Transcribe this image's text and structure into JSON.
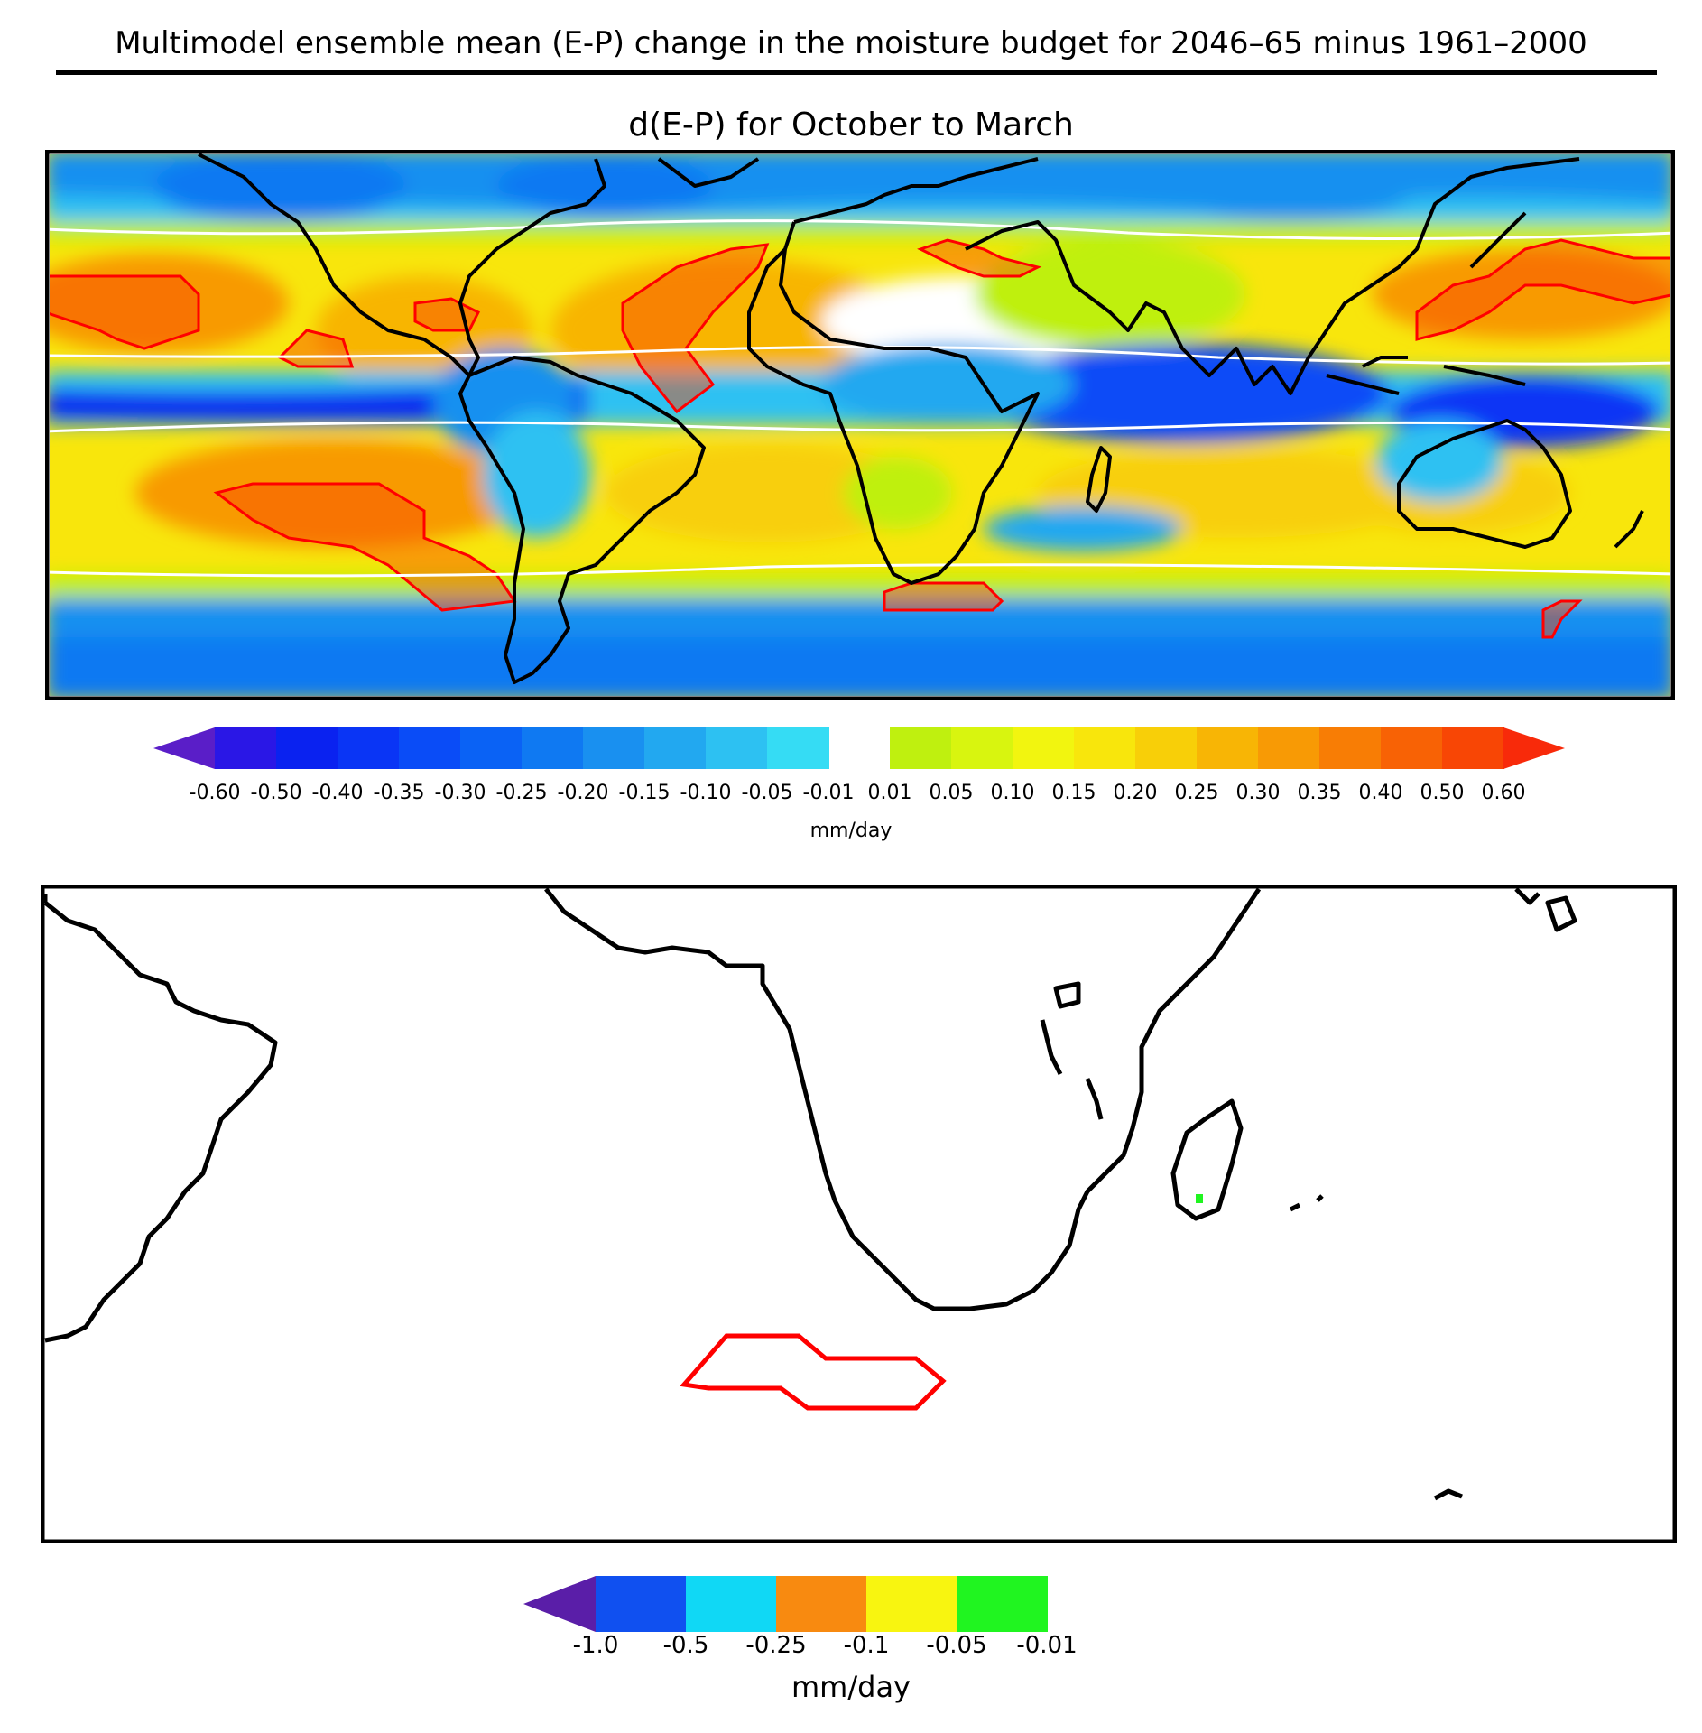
{
  "figure": {
    "title": "Multimodel ensemble mean (E-P) change in the moisture budget for 2046–65 minus 1961–2000",
    "panel_title": "d(E-P) for October to March"
  },
  "top_colorbar": {
    "ticks": [
      "-0.60",
      "-0.50",
      "-0.40",
      "-0.35",
      "-0.30",
      "-0.25",
      "-0.20",
      "-0.15",
      "-0.10",
      "-0.05",
      "-0.01",
      "0.01",
      "0.05",
      "0.10",
      "0.15",
      "0.20",
      "0.25",
      "0.30",
      "0.35",
      "0.40",
      "0.50",
      "0.60"
    ],
    "unit": "mm/day",
    "colors_negative": [
      "#5a1ec8",
      "#2a17e6",
      "#0a22f0",
      "#0a35f5",
      "#0a4cf7",
      "#0a62f5",
      "#0f79f2",
      "#1990f0",
      "#22a8f0",
      "#2dc1f2",
      "#35dcf4"
    ],
    "colors_positive": [
      "#bff00f",
      "#d8f50f",
      "#f2f50f",
      "#f8e60c",
      "#f8cf08",
      "#f8b505",
      "#f89a05",
      "#f87d05",
      "#f86205",
      "#f84605",
      "#f82a0a"
    ]
  },
  "bottom_colorbar": {
    "ticks": [
      "-1.0",
      "-0.5",
      "-0.25",
      "-0.1",
      "-0.05",
      "-0.01"
    ],
    "unit": "mm/day",
    "colors": [
      "#5a1ea8",
      "#1050f0",
      "#10d8f5",
      "#f88a10",
      "#f8f510",
      "#20f520"
    ]
  },
  "map_colors": {
    "contour": "#ff0000",
    "coast": "#000000",
    "neutral": "#ffffff"
  }
}
